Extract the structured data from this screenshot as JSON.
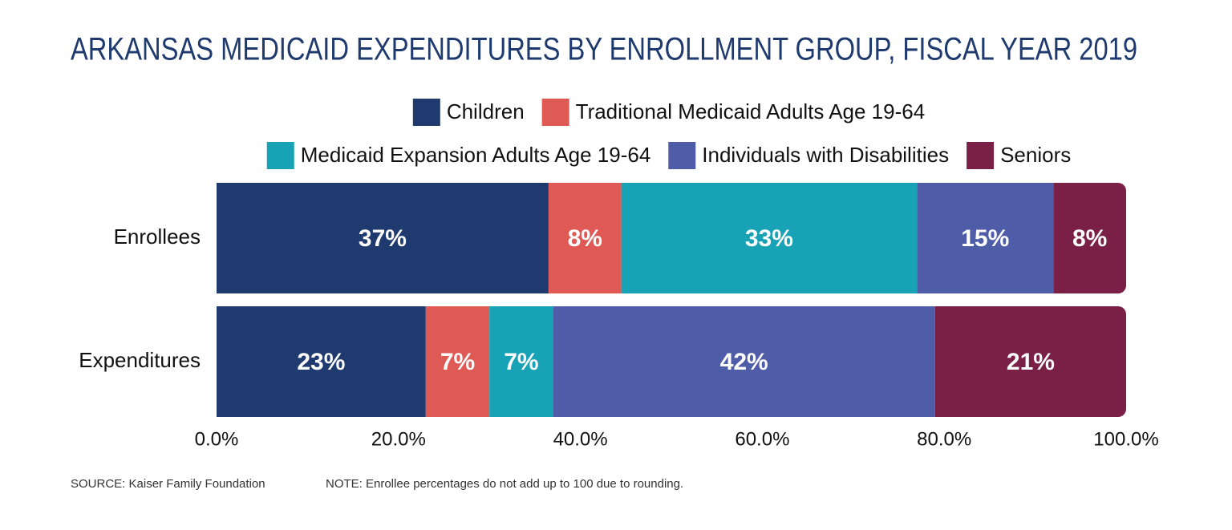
{
  "chart_data": {
    "type": "stacked-bar-horizontal",
    "title": "ARKANSAS MEDICAID EXPENDITURES BY ENROLLMENT GROUP, FISCAL YEAR 2019",
    "categories": [
      "Enrollees",
      "Expenditures"
    ],
    "series": [
      {
        "name": "Children",
        "color": "#1f3a6e",
        "values": [
          36.5,
          23
        ],
        "value_labels": [
          "37%",
          "23%"
        ]
      },
      {
        "name": "Traditional Medicaid Adults Age 19-64",
        "color": "#e05a55",
        "values": [
          8,
          7
        ],
        "value_labels": [
          "8%",
          "7%"
        ]
      },
      {
        "name": "Medicaid Expansion Adults Age 19-64",
        "color": "#17a2b5",
        "values": [
          32.5,
          7
        ],
        "value_labels": [
          "33%",
          "7%"
        ]
      },
      {
        "name": "Individuals with Disabilities",
        "color": "#4f5da8",
        "values": [
          15,
          42
        ],
        "value_labels": [
          "15%",
          "42%"
        ]
      },
      {
        "name": "Seniors",
        "color": "#7a2046",
        "values": [
          8,
          21
        ],
        "value_labels": [
          "8%",
          "21%"
        ]
      }
    ],
    "xlim": [
      0,
      100
    ],
    "xticks": [
      {
        "value": 0,
        "label": "0.0%"
      },
      {
        "value": 20,
        "label": "20.0%"
      },
      {
        "value": 40,
        "label": "40.0%"
      },
      {
        "value": 60,
        "label": "60.0%"
      },
      {
        "value": 80,
        "label": "80.0%"
      },
      {
        "value": 100,
        "label": "100.0%"
      }
    ],
    "grid": false,
    "legend": "top",
    "source": "SOURCE: Kaiser Family Foundation",
    "note": "NOTE: Enrollee percentages do not add up to 100 due to rounding."
  }
}
